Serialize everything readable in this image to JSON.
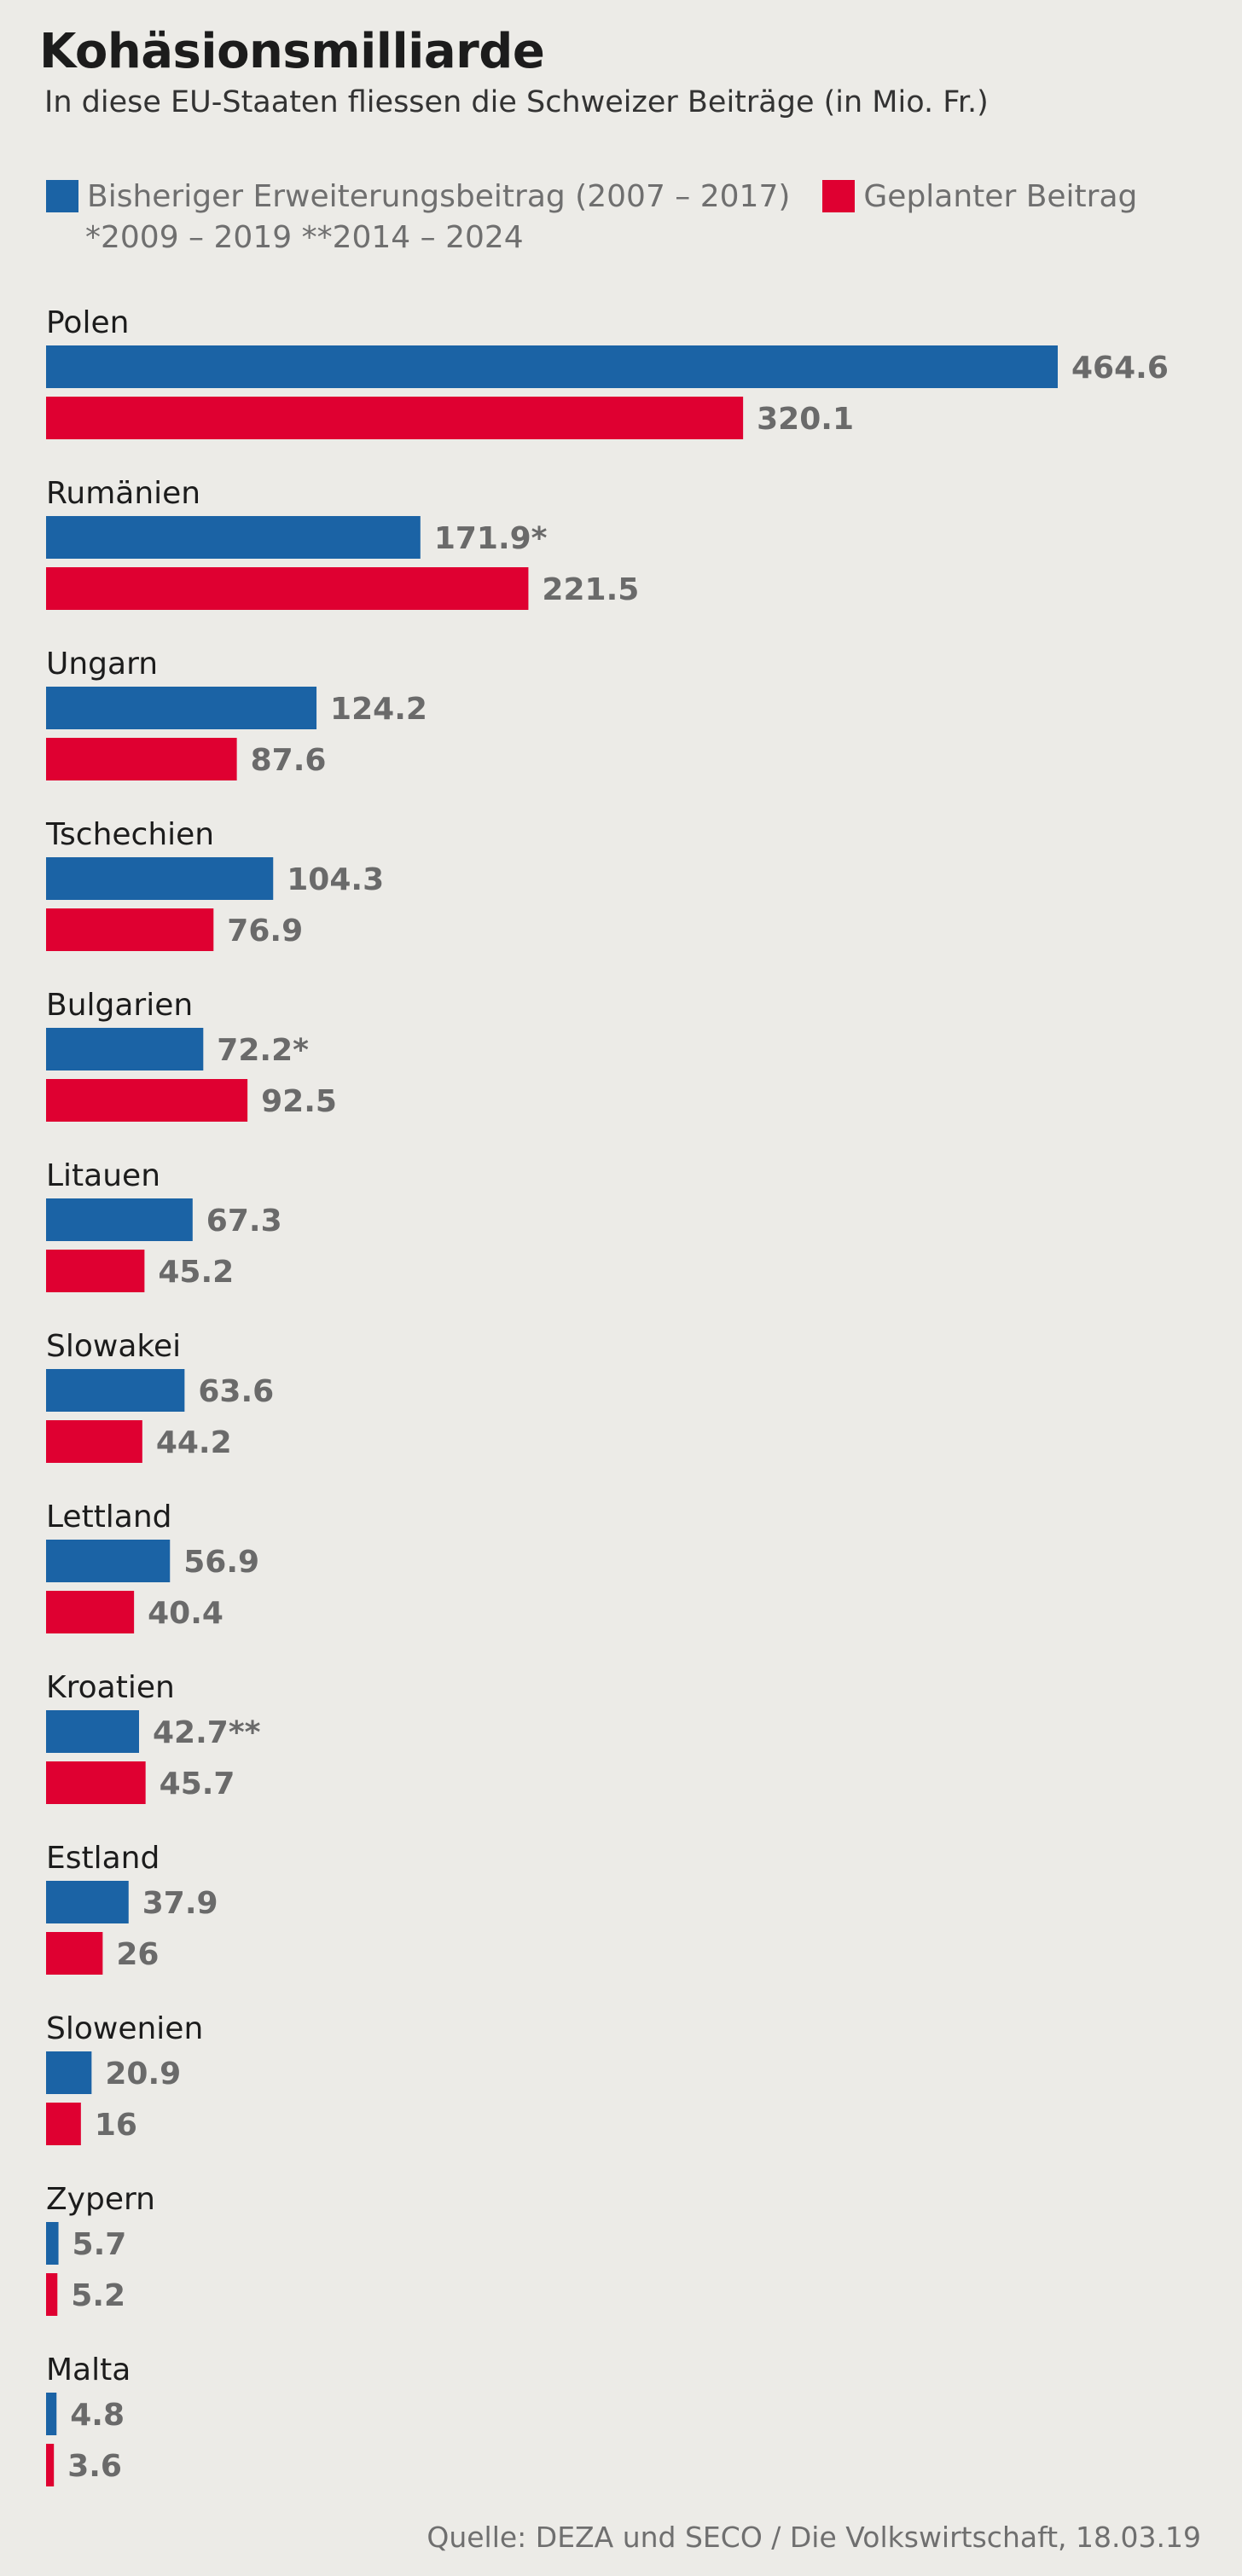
{
  "chart_data": {
    "type": "bar",
    "orientation": "horizontal",
    "title": "Kohäsionsmilliarde",
    "subtitle": "In diese EU-Staaten fliessen die Schweizer Beiträge (in Mio. Fr.)",
    "categories": [
      "Polen",
      "Rumänien",
      "Ungarn",
      "Tschechien",
      "Bulgarien",
      "Litauen",
      "Slowakei",
      "Lettland",
      "Kroatien",
      "Estland",
      "Slowenien",
      "Zypern",
      "Malta"
    ],
    "series": [
      {
        "name": "Bisheriger Erweiterungsbeitrag (2007 – 2017)",
        "color": "#1b63a5",
        "values": [
          464.6,
          171.9,
          124.2,
          104.3,
          72.2,
          67.3,
          63.6,
          56.9,
          42.7,
          37.9,
          20.9,
          5.7,
          4.8
        ],
        "labels": [
          "464.6",
          "171.9*",
          "124.2",
          "104.3",
          "72.2*",
          "67.3",
          "63.6",
          "56.9",
          "42.7**",
          "37.9",
          "20.9",
          "5.7",
          "4.8"
        ]
      },
      {
        "name": "Geplanter Beitrag",
        "color": "#df0031",
        "values": [
          320.1,
          221.5,
          87.6,
          76.9,
          92.5,
          45.2,
          44.2,
          40.4,
          45.7,
          26,
          16,
          5.2,
          3.6
        ],
        "labels": [
          "320.1",
          "221.5",
          "87.6",
          "76.9",
          "92.5",
          "45.2",
          "44.2",
          "40.4",
          "45.7",
          "26",
          "16",
          "5.2",
          "3.6"
        ]
      }
    ],
    "legend_note": "*2009 – 2019  **2014 – 2024",
    "xlim": [
      0,
      464.6
    ],
    "grid": false,
    "legend_position": "top-left",
    "source": "Quelle: DEZA und SECO / Die Volkswirtschaft, 18.03.19"
  }
}
